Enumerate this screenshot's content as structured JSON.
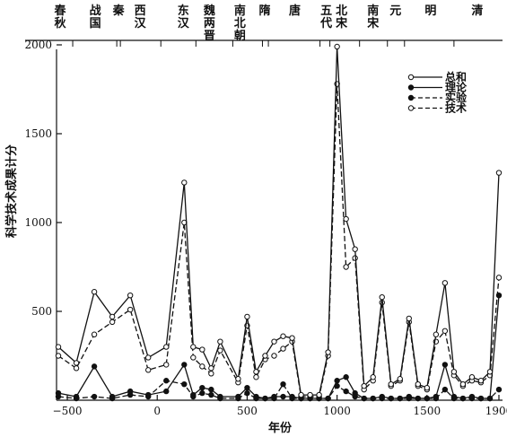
{
  "chart_data": {
    "type": "line",
    "xlabel": "年份",
    "ylabel": "科学技术成果计分",
    "xlim": [
      -560,
      1920
    ],
    "ylim": [
      0,
      2000
    ],
    "xticks": [
      -500,
      0,
      500,
      1000,
      1500,
      1900
    ],
    "xtick_labels": [
      "−500",
      "0",
      "500",
      "1000",
      "1500",
      "1900"
    ],
    "yticks": [
      500,
      1000,
      1500,
      2000
    ],
    "ytick_labels": [
      "500",
      "1000",
      "1500",
      "2000"
    ],
    "dynasties": [
      {
        "label": "春秋",
        "x": -540
      },
      {
        "label": "战国",
        "x": -345
      },
      {
        "label": "秦",
        "x": -215
      },
      {
        "label": "西汉",
        "x": -95
      },
      {
        "label": "东汉",
        "x": 145
      },
      {
        "label": "魏两晋",
        "x": 290
      },
      {
        "label": "南北朝",
        "x": 460
      },
      {
        "label": "隋",
        "x": 598
      },
      {
        "label": "唐",
        "x": 765
      },
      {
        "label": "五代",
        "x": 940
      },
      {
        "label": "北宋",
        "x": 1025
      },
      {
        "label": "南宋",
        "x": 1200
      },
      {
        "label": "元",
        "x": 1325
      },
      {
        "label": "明",
        "x": 1520
      },
      {
        "label": "清",
        "x": 1780
      }
    ],
    "dynasty_dividers": [
      -470,
      -225,
      -205,
      20,
      215,
      420,
      585,
      618,
      905,
      960,
      1125,
      1280,
      1375,
      1650
    ],
    "legend": {
      "position": "top-right",
      "entries": [
        {
          "name": "总和",
          "line": "solid",
          "marker": "open"
        },
        {
          "name": "理论",
          "line": "solid",
          "marker": "filled"
        },
        {
          "name": "实验",
          "line": "dashed",
          "marker": "filled"
        },
        {
          "name": "技术",
          "line": "dashed",
          "marker": "open"
        }
      ]
    },
    "series": [
      {
        "name": "总和",
        "line": "solid",
        "marker": "open",
        "x": [
          -550,
          -450,
          -350,
          -250,
          -150,
          -50,
          50,
          150,
          200,
          250,
          300,
          350,
          450,
          500,
          550,
          600,
          650,
          700,
          750,
          800,
          850,
          900,
          950,
          1000,
          1050,
          1100,
          1150,
          1200,
          1250,
          1300,
          1350,
          1400,
          1450,
          1500,
          1550,
          1600,
          1650,
          1700,
          1750,
          1800,
          1850,
          1900
        ],
        "y": [
          300,
          210,
          610,
          470,
          590,
          240,
          300,
          1225,
          300,
          285,
          180,
          330,
          120,
          470,
          160,
          250,
          330,
          360,
          350,
          30,
          30,
          30,
          270,
          1990,
          1020,
          850,
          80,
          130,
          580,
          90,
          120,
          460,
          90,
          70,
          370,
          660,
          160,
          90,
          130,
          110,
          160,
          1280
        ]
      },
      {
        "name": "理论",
        "line": "solid",
        "marker": "filled",
        "x": [
          -550,
          -450,
          -350,
          -250,
          -150,
          -50,
          50,
          150,
          200,
          250,
          300,
          350,
          450,
          500,
          550,
          600,
          650,
          700,
          750,
          800,
          850,
          900,
          950,
          1000,
          1050,
          1100,
          1150,
          1200,
          1250,
          1300,
          1350,
          1400,
          1450,
          1500,
          1550,
          1600,
          1650,
          1700,
          1750,
          1800,
          1850,
          1900
        ],
        "y": [
          40,
          20,
          190,
          20,
          50,
          30,
          50,
          200,
          30,
          70,
          60,
          20,
          20,
          70,
          20,
          10,
          20,
          20,
          20,
          10,
          10,
          10,
          10,
          110,
          130,
          40,
          10,
          10,
          20,
          10,
          10,
          20,
          10,
          10,
          20,
          200,
          20,
          10,
          20,
          10,
          10,
          590
        ]
      },
      {
        "name": "实验",
        "line": "dashed",
        "marker": "filled",
        "x": [
          -550,
          -450,
          -350,
          -250,
          -150,
          -50,
          50,
          150,
          200,
          250,
          300,
          350,
          450,
          500,
          550,
          600,
          650,
          700,
          750,
          800,
          850,
          900,
          950,
          1000,
          1050,
          1100,
          1150,
          1200,
          1250,
          1300,
          1350,
          1400,
          1450,
          1500,
          1550,
          1600,
          1650,
          1700,
          1750,
          1800,
          1850,
          1900
        ],
        "y": [
          20,
          10,
          20,
          10,
          30,
          20,
          110,
          90,
          20,
          40,
          30,
          10,
          10,
          40,
          10,
          10,
          10,
          90,
          10,
          10,
          10,
          10,
          10,
          80,
          50,
          20,
          10,
          10,
          10,
          10,
          10,
          10,
          10,
          10,
          10,
          60,
          10,
          10,
          10,
          10,
          10,
          60
        ]
      },
      {
        "name": "技术",
        "line": "dashed",
        "marker": "open",
        "x": [
          -550,
          -450,
          -350,
          -250,
          -150,
          -50,
          50,
          150,
          200,
          250,
          300,
          350,
          450,
          500,
          550,
          600,
          650,
          700,
          750,
          800,
          850,
          900,
          950,
          1000,
          1050,
          1100,
          1150,
          1200,
          1250,
          1300,
          1350,
          1400,
          1450,
          1500,
          1550,
          1600,
          1650,
          1700,
          1750,
          1800,
          1850,
          1900
        ],
        "y": [
          250,
          180,
          370,
          440,
          510,
          170,
          200,
          1000,
          240,
          190,
          150,
          280,
          100,
          420,
          130,
          230,
          250,
          290,
          330,
          20,
          20,
          20,
          250,
          1780,
          750,
          800,
          60,
          110,
          550,
          80,
          110,
          440,
          80,
          60,
          330,
          390,
          140,
          80,
          110,
          100,
          140,
          690
        ]
      }
    ]
  }
}
